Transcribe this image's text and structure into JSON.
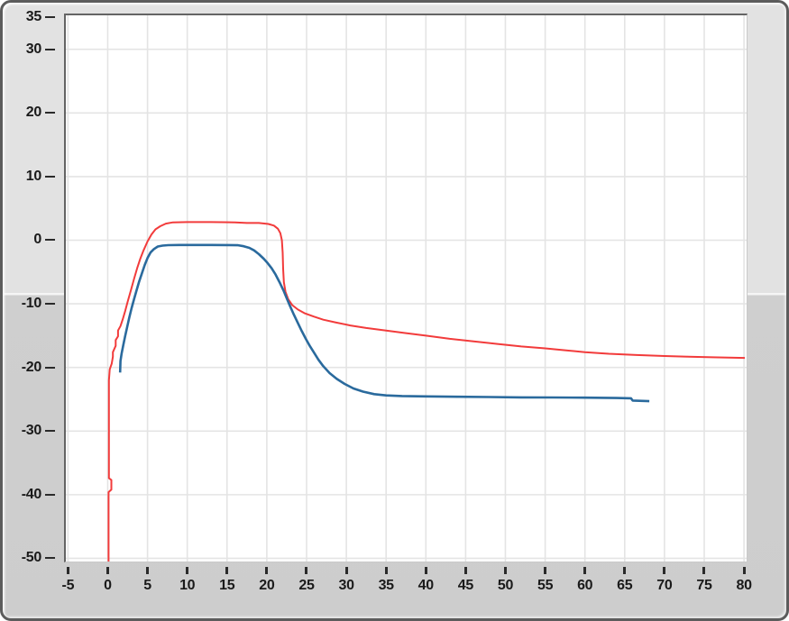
{
  "panel": {
    "frame_border_color": "#5c5c5c",
    "bg_upper": "#e2e2e2",
    "bg_lower": "#cdcdcd",
    "plot_bg": "#ffffff",
    "plot_border_dark": "#646464",
    "plot_border_light": "#c9c9c9",
    "tick_color": "#2a2a2a",
    "label_color": "#1a1a1a"
  },
  "chart_data": {
    "type": "line",
    "title": "",
    "xlabel": "",
    "ylabel": "",
    "grid": "on",
    "grid_color": "#e4e4e4",
    "legend": "none",
    "xlim": [
      -5.27,
      80.33
    ],
    "ylim": [
      -50.5,
      35.34
    ],
    "x_ticks": [
      -5,
      0,
      5,
      10,
      15,
      20,
      25,
      30,
      35,
      40,
      45,
      50,
      55,
      60,
      65,
      70,
      75,
      80
    ],
    "y_ticks": [
      35,
      30,
      20,
      10,
      0,
      -10,
      -20,
      -30,
      -40,
      -50
    ],
    "x_gridlines": [
      -5,
      0,
      5,
      10,
      15,
      20,
      25,
      30,
      35,
      40,
      45,
      50,
      55,
      60,
      65,
      70,
      75,
      80
    ],
    "y_gridlines": [
      30,
      20,
      10,
      0,
      -10,
      -20,
      -30,
      -40,
      -50
    ],
    "series": [
      {
        "name": "red-plot",
        "color": "#f23b3b",
        "width": 2,
        "points": [
          [
            0.1,
            -50.5
          ],
          [
            0.1,
            -39.6
          ],
          [
            0.45,
            -39.2
          ],
          [
            0.45,
            -37.7
          ],
          [
            0.15,
            -37.4
          ],
          [
            0.15,
            -22.0
          ],
          [
            0.25,
            -20.3
          ],
          [
            0.5,
            -19.4
          ],
          [
            0.65,
            -18.3
          ],
          [
            0.65,
            -17.6
          ],
          [
            1.0,
            -16.6
          ],
          [
            1.0,
            -15.7
          ],
          [
            1.3,
            -15.1
          ],
          [
            1.3,
            -14.2
          ],
          [
            1.6,
            -13.5
          ],
          [
            1.9,
            -12.4
          ],
          [
            2.2,
            -11.1
          ],
          [
            2.5,
            -9.7
          ],
          [
            2.9,
            -7.9
          ],
          [
            3.3,
            -6.1
          ],
          [
            3.7,
            -4.4
          ],
          [
            4.1,
            -2.9
          ],
          [
            4.5,
            -1.6
          ],
          [
            5.0,
            -0.2
          ],
          [
            5.5,
            0.9
          ],
          [
            6.0,
            1.7
          ],
          [
            6.6,
            2.2
          ],
          [
            7.3,
            2.6
          ],
          [
            8.2,
            2.8
          ],
          [
            10,
            2.85
          ],
          [
            13,
            2.85
          ],
          [
            16,
            2.8
          ],
          [
            17.5,
            2.7
          ],
          [
            19,
            2.7
          ],
          [
            20.2,
            2.55
          ],
          [
            20.9,
            2.3
          ],
          [
            21.4,
            1.8
          ],
          [
            21.7,
            1.1
          ],
          [
            21.9,
            0.0
          ],
          [
            22.0,
            -2.0
          ],
          [
            22.05,
            -4.5
          ],
          [
            22.15,
            -6.6
          ],
          [
            22.35,
            -8.1
          ],
          [
            22.7,
            -9.3
          ],
          [
            23.2,
            -10.2
          ],
          [
            23.9,
            -10.9
          ],
          [
            24.8,
            -11.5
          ],
          [
            25.9,
            -12.0
          ],
          [
            27.1,
            -12.5
          ],
          [
            28.6,
            -12.9
          ],
          [
            30.5,
            -13.4
          ],
          [
            32.5,
            -13.8
          ],
          [
            35,
            -14.2
          ],
          [
            37.5,
            -14.6
          ],
          [
            40,
            -15.0
          ],
          [
            43,
            -15.5
          ],
          [
            46,
            -15.9
          ],
          [
            49,
            -16.3
          ],
          [
            52,
            -16.7
          ],
          [
            55,
            -17.0
          ],
          [
            57.5,
            -17.3
          ],
          [
            60,
            -17.6
          ],
          [
            63,
            -17.85
          ],
          [
            66.5,
            -18.05
          ],
          [
            70,
            -18.2
          ],
          [
            73,
            -18.3
          ],
          [
            76,
            -18.4
          ],
          [
            80.1,
            -18.5
          ]
        ]
      },
      {
        "name": "blue-plot",
        "color": "#2a6a9d",
        "width": 2.6,
        "points": [
          [
            1.56,
            -20.8
          ],
          [
            1.6,
            -19.0
          ],
          [
            1.75,
            -17.8
          ],
          [
            1.95,
            -16.5
          ],
          [
            2.2,
            -15.0
          ],
          [
            2.45,
            -13.6
          ],
          [
            2.7,
            -12.2
          ],
          [
            3.0,
            -10.7
          ],
          [
            3.3,
            -9.3
          ],
          [
            3.6,
            -8.0
          ],
          [
            3.95,
            -6.5
          ],
          [
            4.3,
            -5.2
          ],
          [
            4.65,
            -3.9
          ],
          [
            5.0,
            -2.8
          ],
          [
            5.4,
            -1.9
          ],
          [
            5.8,
            -1.4
          ],
          [
            6.3,
            -1.0
          ],
          [
            6.9,
            -0.85
          ],
          [
            7.6,
            -0.78
          ],
          [
            9,
            -0.75
          ],
          [
            11,
            -0.75
          ],
          [
            13,
            -0.75
          ],
          [
            15,
            -0.76
          ],
          [
            16.4,
            -0.8
          ],
          [
            17.1,
            -0.95
          ],
          [
            17.8,
            -1.2
          ],
          [
            18.4,
            -1.6
          ],
          [
            19.0,
            -2.2
          ],
          [
            19.6,
            -2.9
          ],
          [
            20.1,
            -3.6
          ],
          [
            20.6,
            -4.4
          ],
          [
            21.1,
            -5.4
          ],
          [
            21.6,
            -6.6
          ],
          [
            22.1,
            -7.9
          ],
          [
            22.5,
            -9.1
          ],
          [
            22.9,
            -10.3
          ],
          [
            23.4,
            -11.7
          ],
          [
            23.9,
            -13.0
          ],
          [
            24.4,
            -14.3
          ],
          [
            24.9,
            -15.5
          ],
          [
            25.4,
            -16.6
          ],
          [
            25.9,
            -17.6
          ],
          [
            26.5,
            -18.8
          ],
          [
            27.1,
            -19.8
          ],
          [
            27.9,
            -20.9
          ],
          [
            28.8,
            -21.8
          ],
          [
            29.8,
            -22.6
          ],
          [
            30.9,
            -23.3
          ],
          [
            32.1,
            -23.8
          ],
          [
            33.5,
            -24.2
          ],
          [
            35,
            -24.4
          ],
          [
            37,
            -24.5
          ],
          [
            40,
            -24.55
          ],
          [
            44,
            -24.6
          ],
          [
            48,
            -24.65
          ],
          [
            52,
            -24.7
          ],
          [
            56,
            -24.72
          ],
          [
            60,
            -24.75
          ],
          [
            64,
            -24.8
          ],
          [
            65.8,
            -24.85
          ],
          [
            66,
            -25.2
          ],
          [
            68.1,
            -25.3
          ]
        ]
      }
    ]
  }
}
